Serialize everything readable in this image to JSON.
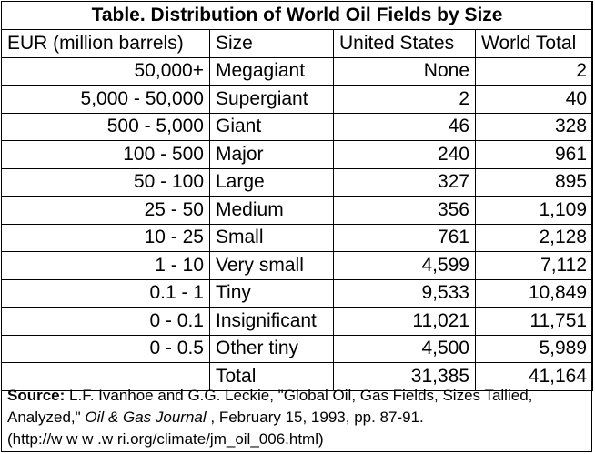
{
  "title": "Table. Distribution of World Oil Fields by Size",
  "headers": [
    "EUR (million barrels)",
    "Size",
    "United States",
    "World Total"
  ],
  "rows": [
    [
      "50,000+",
      "Megagiant",
      "None",
      "2"
    ],
    [
      "5,000 - 50,000",
      "Supergiant",
      "2",
      "40"
    ],
    [
      "500 - 5,000",
      "Giant",
      "46",
      "328"
    ],
    [
      "100 - 500",
      "Major",
      "240",
      "961"
    ],
    [
      "50 - 100",
      "Large",
      "327",
      "895"
    ],
    [
      "25 - 50",
      "Medium",
      "356",
      "1,109"
    ],
    [
      "10 - 25",
      "Small",
      "761",
      "2,128"
    ],
    [
      "1 - 10",
      "Very small",
      "4,599",
      "7,112"
    ],
    [
      "0.1 - 1",
      "Tiny",
      "9,533",
      "10,849"
    ],
    [
      "0 - 0.1",
      "Insignificant",
      "11,021",
      "11,751"
    ],
    [
      "0 - 0.5",
      "Other tiny",
      "4,500",
      "5,989"
    ],
    [
      "",
      "Total",
      "31,385",
      "41,164"
    ]
  ],
  "source": {
    "label": "Source:",
    "text1": " L.F. Ivanhoe and G.G. Leckie, \"Global Oil, Gas Fields, Sizes Tallied, Analyzed,\" ",
    "journal": "Oil & Gas Journal",
    "text2": " , February 15, 1993, pp. 87-91.",
    "url": "(http://w w w .w ri.org/climate/jm_oil_006.html)"
  }
}
